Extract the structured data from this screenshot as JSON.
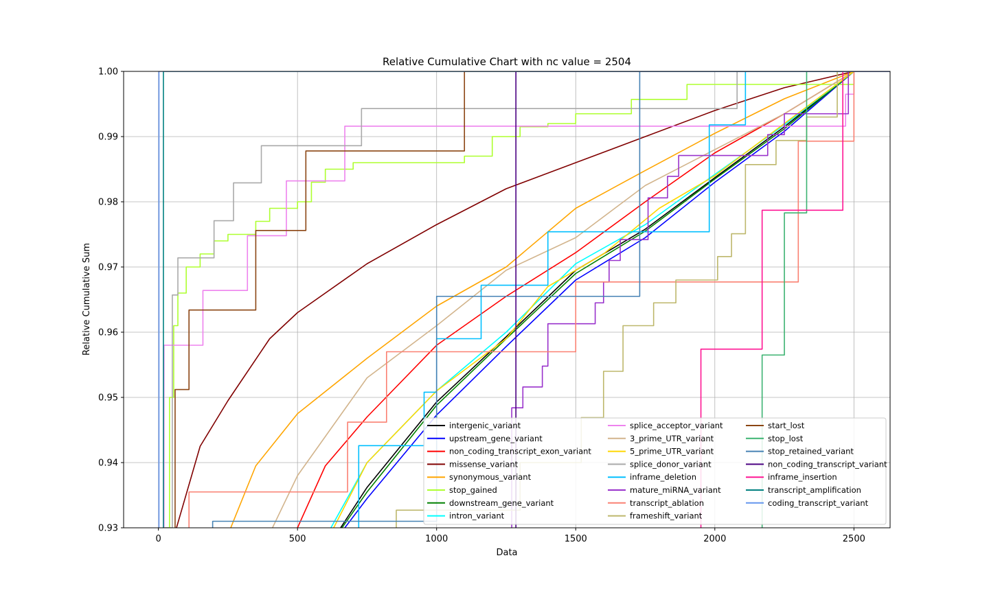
{
  "chart_data": {
    "type": "line",
    "title": "Relative Cumulative Chart with nc value = 2504",
    "xlabel": "Data",
    "ylabel": "Relative Cumulative Sum",
    "xlim": [
      -125,
      2630
    ],
    "ylim": [
      0.93,
      1.0
    ],
    "xticks": [
      0,
      500,
      1000,
      1500,
      2000,
      2500
    ],
    "yticks": [
      0.93,
      0.94,
      0.95,
      0.96,
      0.97,
      0.98,
      0.99,
      1.0
    ],
    "xtick_labels": [
      "0",
      "500",
      "1000",
      "1500",
      "2000",
      "2500"
    ],
    "ytick_labels": [
      "0.93",
      "0.94",
      "0.95",
      "0.96",
      "0.97",
      "0.98",
      "0.99",
      "1.00"
    ],
    "grid": true,
    "legend_position": "lower-right",
    "legend_columns": 3,
    "series": [
      {
        "name": "intergenic_variant",
        "color": "#000000",
        "step": false,
        "x": [
          655,
          750,
          1000,
          1250,
          1500,
          1750,
          2000,
          2250,
          2500
        ],
        "y": [
          0.93,
          0.9362,
          0.9493,
          0.9593,
          0.9695,
          0.9758,
          0.9837,
          0.9915,
          1.0
        ]
      },
      {
        "name": "upstream_gene_variant",
        "color": "#0000ff",
        "step": false,
        "x": [
          670,
          750,
          1000,
          1250,
          1500,
          1750,
          2000,
          2250,
          2500
        ],
        "y": [
          0.93,
          0.9345,
          0.9473,
          0.9578,
          0.968,
          0.9745,
          0.983,
          0.9908,
          1.0
        ]
      },
      {
        "name": "non_coding_transcript_exon_variant",
        "color": "#ff0000",
        "step": false,
        "x": [
          500,
          600,
          750,
          1000,
          1250,
          1500,
          1750,
          2000,
          2250,
          2500
        ],
        "y": [
          0.93,
          0.9395,
          0.947,
          0.958,
          0.9655,
          0.9722,
          0.98,
          0.9875,
          0.9935,
          1.0
        ]
      },
      {
        "name": "missense_variant",
        "color": "#800000",
        "step": false,
        "x": [
          65,
          150,
          250,
          400,
          500,
          750,
          1000,
          1250,
          1500,
          1750,
          2000,
          2250,
          2500
        ],
        "y": [
          0.93,
          0.9425,
          0.9495,
          0.959,
          0.963,
          0.9705,
          0.9765,
          0.982,
          0.986,
          0.99,
          0.994,
          0.9975,
          1.0
        ]
      },
      {
        "name": "synonymous_variant",
        "color": "#ffa500",
        "step": false,
        "x": [
          260,
          350,
          500,
          750,
          1000,
          1250,
          1500,
          1750,
          2000,
          2250,
          2500
        ],
        "y": [
          0.93,
          0.9395,
          0.9475,
          0.956,
          0.964,
          0.97,
          0.979,
          0.9848,
          0.9905,
          0.9958,
          1.0
        ]
      },
      {
        "name": "stop_gained",
        "color": "#adff2f",
        "step": true,
        "x": [
          25,
          40,
          55,
          70,
          100,
          150,
          200,
          250,
          350,
          400,
          500,
          550,
          600,
          700,
          1100,
          1200,
          1300,
          1400,
          1500,
          1700,
          1900,
          2300,
          2500
        ],
        "y": [
          0.93,
          0.95,
          0.961,
          0.966,
          0.97,
          0.972,
          0.974,
          0.975,
          0.977,
          0.979,
          0.98,
          0.983,
          0.985,
          0.986,
          0.987,
          0.99,
          0.9915,
          0.992,
          0.9935,
          0.9957,
          0.998,
          0.998,
          1.0
        ]
      },
      {
        "name": "downstream_gene_variant",
        "color": "#008000",
        "step": false,
        "x": [
          660,
          750,
          1000,
          1250,
          1500,
          1750,
          2000,
          2250,
          2500
        ],
        "y": [
          0.93,
          0.9355,
          0.9488,
          0.959,
          0.969,
          0.9755,
          0.9835,
          0.9912,
          1.0
        ]
      },
      {
        "name": "intron_variant",
        "color": "#00ffff",
        "step": false,
        "x": [
          620,
          750,
          1000,
          1250,
          1500,
          1750,
          2000,
          2250,
          2500
        ],
        "y": [
          0.93,
          0.94,
          0.951,
          0.96,
          0.9705,
          0.9765,
          0.9842,
          0.9918,
          1.0
        ]
      },
      {
        "name": "splice_acceptor_variant",
        "color": "#ee82ee",
        "step": true,
        "x": [
          20,
          160,
          320,
          460,
          670,
          2470,
          2500
        ],
        "y": [
          0.958,
          0.9664,
          0.9748,
          0.9832,
          0.9916,
          0.9965,
          1.0
        ]
      },
      {
        "name": "3_prime_UTR_variant",
        "color": "#d2b48c",
        "step": false,
        "x": [
          410,
          500,
          600,
          750,
          1000,
          1250,
          1500,
          1750,
          2000,
          2250,
          2500
        ],
        "y": [
          0.93,
          0.938,
          0.944,
          0.953,
          0.961,
          0.9695,
          0.9745,
          0.9825,
          0.988,
          0.9935,
          1.0
        ]
      },
      {
        "name": "5_prime_UTR_variant",
        "color": "#ffd700",
        "step": false,
        "x": [
          630,
          750,
          1000,
          1250,
          1400,
          1600,
          1800,
          2000,
          2250,
          2500
        ],
        "y": [
          0.93,
          0.94,
          0.951,
          0.959,
          0.967,
          0.972,
          0.979,
          0.984,
          0.992,
          1.0
        ]
      },
      {
        "name": "splice_donor_variant",
        "color": "#a9a9a9",
        "step": true,
        "x": [
          22,
          50,
          70,
          200,
          270,
          370,
          610,
          730,
          2080,
          2500
        ],
        "y": [
          0.93,
          0.9657,
          0.9714,
          0.9771,
          0.9829,
          0.9886,
          0.9886,
          0.9943,
          1.0,
          1.0
        ]
      },
      {
        "name": "inframe_deletion",
        "color": "#00bfff",
        "step": true,
        "x": [
          600,
          720,
          955,
          1000,
          1060,
          1160,
          1400,
          1980,
          2000,
          2110
        ],
        "y": [
          0.9295,
          0.9426,
          0.9508,
          0.959,
          0.959,
          0.9672,
          0.9754,
          0.9918,
          0.9918,
          1.0
        ]
      },
      {
        "name": "mature_miRNA_variant",
        "color": "#9932cc",
        "step": true,
        "x": [
          1270,
          1310,
          1380,
          1400,
          1570,
          1600,
          1620,
          1660,
          1760,
          1830,
          1870,
          2190,
          2250,
          2480
        ],
        "y": [
          0.9484,
          0.9516,
          0.9548,
          0.9613,
          0.9645,
          0.9677,
          0.971,
          0.9742,
          0.9806,
          0.9839,
          0.9871,
          0.9903,
          0.9935,
          1.0
        ]
      },
      {
        "name": "transcript_ablation",
        "color": "#fa8072",
        "step": true,
        "x": [
          110,
          680,
          820,
          1500,
          1730,
          2300,
          2500
        ],
        "y": [
          0.9355,
          0.9462,
          0.957,
          0.9677,
          0.9677,
          0.9893,
          1.0
        ]
      },
      {
        "name": "frameshift_variant",
        "color": "#bdb76b",
        "step": true,
        "x": [
          855,
          1300,
          1520,
          1600,
          1670,
          1780,
          1860,
          1900,
          2010,
          2060,
          2110,
          2220,
          2330,
          2440
        ],
        "y": [
          0.9327,
          0.94,
          0.9469,
          0.954,
          0.961,
          0.9645,
          0.968,
          0.968,
          0.9716,
          0.9751,
          0.9857,
          0.9894,
          0.993,
          1.0
        ]
      },
      {
        "name": "start_lost",
        "color": "#8b4513",
        "step": true,
        "x": [
          60,
          110,
          350,
          530,
          1100
        ],
        "y": [
          0.9512,
          0.9634,
          0.9756,
          0.9878,
          1.0
        ]
      },
      {
        "name": "stop_lost",
        "color": "#3cb371",
        "step": true,
        "x": [
          2170,
          2250,
          2330
        ],
        "y": [
          0.9565,
          0.9783,
          1.0
        ]
      },
      {
        "name": "stop_retained_variant",
        "color": "#4682b4",
        "step": true,
        "x": [
          195,
          1000,
          1730
        ],
        "y": [
          0.931,
          0.9655,
          1.0
        ]
      },
      {
        "name": "non_coding_transcript_variant",
        "color": "#4b0082",
        "step": true,
        "x": [
          1285
        ],
        "y": [
          1.0
        ]
      },
      {
        "name": "inframe_insertion",
        "color": "#ff1493",
        "step": true,
        "x": [
          1950,
          2170,
          2460
        ],
        "y": [
          0.9574,
          0.9787,
          1.0
        ]
      },
      {
        "name": "transcript_amplification",
        "color": "#008080",
        "step": true,
        "x": [
          18
        ],
        "y": [
          1.0
        ]
      },
      {
        "name": "coding_transcript_variant",
        "color": "#6495ed",
        "step": true,
        "x": [
          2
        ],
        "y": [
          1.0
        ]
      }
    ]
  }
}
